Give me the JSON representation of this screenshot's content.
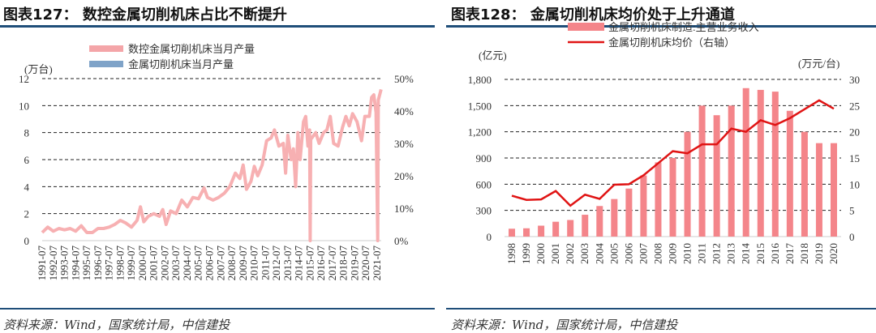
{
  "left": {
    "title": "图表127： 数控金属切削机床占比不断提升",
    "source": "资料来源：Wind，国家统计局，中信建投"
  },
  "right": {
    "title": "图表128： 金属切削机床均价处于上升通道",
    "source": "资料来源：Wind，国家统计局，中信建投"
  },
  "chart_data": [
    {
      "type": "line",
      "title": "数控金属切削机床占比不断提升",
      "ylabel": "(万台)",
      "ylim": [
        0,
        12
      ],
      "yticks": [
        "0",
        "2",
        "4",
        "6",
        "8",
        "10",
        "12"
      ],
      "y2lim": [
        0,
        50
      ],
      "y2ticks": [
        "0%",
        "10%",
        "20%",
        "30%",
        "40%",
        "50%"
      ],
      "xticks": [
        "1991-07",
        "1992-07",
        "1993-07",
        "1994-07",
        "1995-07",
        "1996-07",
        "1997-07",
        "1998-07",
        "1999-07",
        "2000-07",
        "2001-07",
        "2002-07",
        "2003-07",
        "2004-07",
        "2005-07",
        "2006-07",
        "2007-07",
        "2008-07",
        "2009-07",
        "2010-07",
        "2011-07",
        "2012-07",
        "2013-07",
        "2014-07",
        "2015-07",
        "2016-07",
        "2017-07",
        "2018-07",
        "2019-07",
        "2020-07",
        "2021-07"
      ],
      "grid": true,
      "legend": [
        {
          "name": "数控金属切削机床当月产量",
          "color": "#f4a5a8"
        },
        {
          "name": "金属切削机床当月产量",
          "color": "#7fa3c8"
        }
      ],
      "series": [
        {
          "name": "数控金属切削机床当月产量",
          "color": "#f7b0b2",
          "points": [
            [
              1991.5,
              0.6
            ],
            [
              1992,
              1.0
            ],
            [
              1992.5,
              0.7
            ],
            [
              1993,
              0.9
            ],
            [
              1993.5,
              0.8
            ],
            [
              1994,
              0.9
            ],
            [
              1994.5,
              0.7
            ],
            [
              1995,
              1.1
            ],
            [
              1995.5,
              0.6
            ],
            [
              1996,
              0.6
            ],
            [
              1996.5,
              0.9
            ],
            [
              1997,
              0.9
            ],
            [
              1997.5,
              1.0
            ],
            [
              1998,
              1.2
            ],
            [
              1998.5,
              1.5
            ],
            [
              1999,
              1.3
            ],
            [
              1999.5,
              1.0
            ],
            [
              2000,
              1.5
            ],
            [
              2000.3,
              2.5
            ],
            [
              2000.6,
              1.4
            ],
            [
              2001,
              1.8
            ],
            [
              2001.5,
              2.0
            ],
            [
              2002,
              1.8
            ],
            [
              2002.3,
              2.3
            ],
            [
              2002.6,
              1.2
            ],
            [
              2003,
              2.2
            ],
            [
              2003.5,
              2.0
            ],
            [
              2004,
              3.0
            ],
            [
              2004.5,
              2.5
            ],
            [
              2005,
              3.2
            ],
            [
              2005.5,
              3.1
            ],
            [
              2006,
              3.9
            ],
            [
              2006.3,
              3.2
            ],
            [
              2006.8,
              3.0
            ],
            [
              2007.3,
              3.2
            ],
            [
              2007.8,
              3.5
            ],
            [
              2008.3,
              4.0
            ],
            [
              2008.8,
              5.0
            ],
            [
              2009.2,
              4.6
            ],
            [
              2009.5,
              5.6
            ],
            [
              2009.8,
              3.8
            ],
            [
              2010.2,
              4.4
            ],
            [
              2010.5,
              5.5
            ],
            [
              2010.8,
              4.8
            ],
            [
              2011.2,
              5.6
            ],
            [
              2011.6,
              7.4
            ],
            [
              2012,
              7.6
            ],
            [
              2012.3,
              8.2
            ],
            [
              2012.7,
              7.0
            ],
            [
              2013.1,
              7.2
            ],
            [
              2013.3,
              5.0
            ],
            [
              2013.5,
              7.8
            ],
            [
              2013.8,
              6.0
            ],
            [
              2014,
              6.8
            ],
            [
              2014.2,
              4.0
            ],
            [
              2014.4,
              8.0
            ],
            [
              2014.6,
              6.0
            ],
            [
              2014.9,
              8.8
            ],
            [
              2015.1,
              9.2
            ],
            [
              2015.3,
              7.0
            ],
            [
              2015.45,
              8.2
            ],
            [
              2015.5,
              0
            ],
            [
              2015.55,
              7.5
            ],
            [
              2016,
              8.0
            ],
            [
              2016.3,
              7.2
            ],
            [
              2016.7,
              8.0
            ],
            [
              2017,
              8.2
            ],
            [
              2017.3,
              9.2
            ],
            [
              2017.6,
              7.2
            ],
            [
              2018,
              7.0
            ],
            [
              2018.4,
              8.4
            ],
            [
              2018.7,
              9.2
            ],
            [
              2019,
              8.5
            ],
            [
              2019.3,
              9.4
            ],
            [
              2019.7,
              8.8
            ],
            [
              2020.1,
              7.4
            ],
            [
              2020.4,
              9.2
            ],
            [
              2020.8,
              9.2
            ],
            [
              2021.0,
              10.6
            ],
            [
              2021.2,
              10.8
            ],
            [
              2021.4,
              9.5
            ],
            [
              2021.55,
              0
            ],
            [
              2021.6,
              10.4
            ],
            [
              2021.85,
              11.2
            ]
          ]
        }
      ]
    },
    {
      "type": "bar",
      "title": "金属切削机床均价处于上升通道",
      "ylabel": "(亿元)",
      "y2label": "(万元/台)",
      "ylim": [
        0,
        1800
      ],
      "yticks": [
        "0",
        "300",
        "600",
        "900",
        "1,200",
        "1,500",
        "1,800"
      ],
      "y2lim": [
        0,
        30
      ],
      "y2ticks": [
        "0",
        "5",
        "10",
        "15",
        "20",
        "25",
        "30"
      ],
      "grid": true,
      "categories": [
        "1998",
        "1999",
        "2000",
        "2001",
        "2002",
        "2003",
        "2004",
        "2005",
        "2006",
        "2007",
        "2008",
        "2009",
        "2010",
        "2011",
        "2012",
        "2013",
        "2014",
        "2015",
        "2016",
        "2017",
        "2018",
        "2019",
        "2020"
      ],
      "series": [
        {
          "name": "金属切削机床制造:主营业务收入",
          "type": "bar",
          "color": "#f4858a",
          "axis": "left",
          "values": [
            90,
            95,
            125,
            170,
            190,
            250,
            350,
            430,
            550,
            700,
            850,
            900,
            1200,
            1500,
            1390,
            1500,
            1700,
            1680,
            1660,
            1440,
            1200,
            1070,
            1070
          ]
        },
        {
          "name": "金属切削机床均价（右轴）",
          "type": "line",
          "color": "#e01414",
          "axis": "right",
          "values": [
            7.8,
            7.0,
            7.1,
            8.7,
            5.9,
            8.0,
            7.2,
            9.9,
            10.0,
            11.7,
            14.0,
            16.3,
            15.9,
            17.6,
            17.6,
            20.6,
            20.0,
            22.2,
            21.3,
            22.6,
            24.3,
            26.0,
            24.4
          ]
        }
      ]
    }
  ]
}
